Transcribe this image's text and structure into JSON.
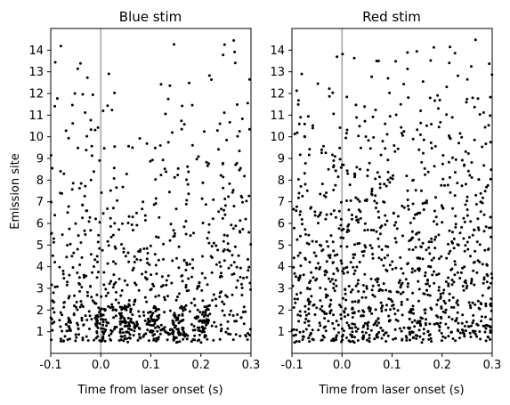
{
  "chart_data": [
    {
      "type": "scatter",
      "title": "Blue stim",
      "xlabel": "Time from laser onset (s)",
      "ylabel": "Emission site",
      "xlim": [
        -0.1,
        0.3
      ],
      "ylim": [
        0.0,
        15.0
      ],
      "xticks": [
        "-0.1",
        "0.0",
        "0.1",
        "0.2",
        "0.3"
      ],
      "yticks": [
        "1",
        "2",
        "3",
        "4",
        "5",
        "6",
        "7",
        "8",
        "9",
        "10",
        "11",
        "12",
        "13",
        "14"
      ],
      "laser_onset": 0.0,
      "marker_color": "#000000",
      "onset_line_color": "#b0b0b0",
      "raster": {
        "per_site_counts": [
          170,
          120,
          90,
          85,
          60,
          50,
          40,
          30,
          28,
          22,
          18,
          10,
          9,
          6
        ],
        "burst_times": [
          0.0,
          0.05,
          0.105,
          0.155,
          0.205
        ],
        "burst_width": 0.012,
        "burst_count": 45,
        "burst_site_max": 2.2,
        "seed": 11
      }
    },
    {
      "type": "scatter",
      "title": "Red stim",
      "xlabel": "Time from laser onset (s)",
      "ylabel": "",
      "xlim": [
        -0.1,
        0.3
      ],
      "ylim": [
        0.0,
        15.0
      ],
      "xticks": [
        "-0.1",
        "0.0",
        "0.1",
        "0.2",
        "0.3"
      ],
      "yticks": [
        "1",
        "2",
        "3",
        "4",
        "5",
        "6",
        "7",
        "8",
        "9",
        "10",
        "11",
        "12",
        "13",
        "14"
      ],
      "laser_onset": 0.0,
      "marker_color": "#000000",
      "onset_line_color": "#b0b0b0",
      "raster": {
        "per_site_counts": [
          230,
          160,
          130,
          110,
          95,
          85,
          70,
          60,
          45,
          40,
          30,
          20,
          14,
          10
        ],
        "burst_times": [],
        "burst_width": 0.0,
        "burst_count": 0,
        "burst_site_max": 0,
        "seed": 29
      }
    }
  ]
}
